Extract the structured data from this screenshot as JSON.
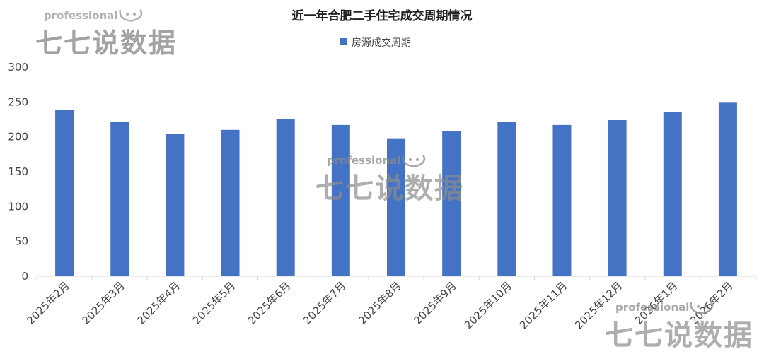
{
  "chart_data": {
    "type": "bar",
    "title": "近一年合肥二手住宅成交周期情况",
    "categories": [
      "2025年2月",
      "2025年3月",
      "2025年4月",
      "2025年5月",
      "2025年6月",
      "2025年7月",
      "2025年8月",
      "2025年9月",
      "2025年10月",
      "2025年11月",
      "2025年12月",
      "2026年1月",
      "2026年2月"
    ],
    "series": [
      {
        "name": "房源成交周期",
        "values": [
          239,
          222,
          204,
          210,
          226,
          217,
          197,
          208,
          221,
          217,
          224,
          236,
          249
        ]
      }
    ],
    "ylim": [
      0,
      300
    ],
    "yticks": [
      0,
      50,
      100,
      150,
      200,
      250,
      300
    ],
    "grid": false,
    "legend": "top-center",
    "colors": {
      "series": "#4472c4",
      "axis": "#d9d9d9",
      "text": "#444444"
    }
  },
  "watermark": {
    "small": "professional",
    "big": "七七说数据",
    "icon": "sheep-face-icon"
  }
}
